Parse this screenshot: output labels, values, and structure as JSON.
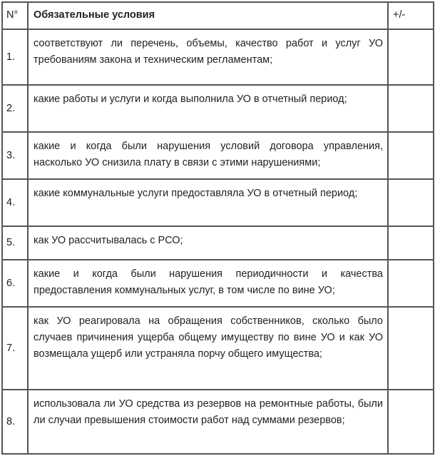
{
  "header": {
    "number": "N°",
    "conditions": "Обязательные условия",
    "mark": "+/-"
  },
  "rows": [
    {
      "number": "1.",
      "text": "соответствуют ли перечень, объемы, качество работ и услуг УО требованиям закона и техническим регламентам;",
      "mark": ""
    },
    {
      "number": "2.",
      "text": "какие работы и услуги и когда выполнила УО в отчетный период;",
      "mark": ""
    },
    {
      "number": "3.",
      "text": "какие и когда были нарушения условий договора управления, насколько УО снизила плату в связи с этими нарушениями;",
      "mark": ""
    },
    {
      "number": "4.",
      "text": "какие коммунальные услуги предоставляла УО в отчетный период;",
      "mark": ""
    },
    {
      "number": "5.",
      "text": "как УО рассчитывалась с РСО;",
      "mark": ""
    },
    {
      "number": "6.",
      "text": "какие и когда были нарушения периодичности и качества предоставления коммунальных услуг, в том числе по вине УО;",
      "mark": ""
    },
    {
      "number": "7.",
      "text": "как УО реагировала на обращения собственников, сколько было случаев причинения ущерба общему имуществу по вине УО и как УО возмещала ущерб или устраняла порчу общего имущества;",
      "mark": ""
    },
    {
      "number": "8.",
      "text": "использовала ли УО средства из резервов на ремонтные работы, были ли случаи превышения стоимости работ над суммами резервов;",
      "mark": ""
    }
  ]
}
